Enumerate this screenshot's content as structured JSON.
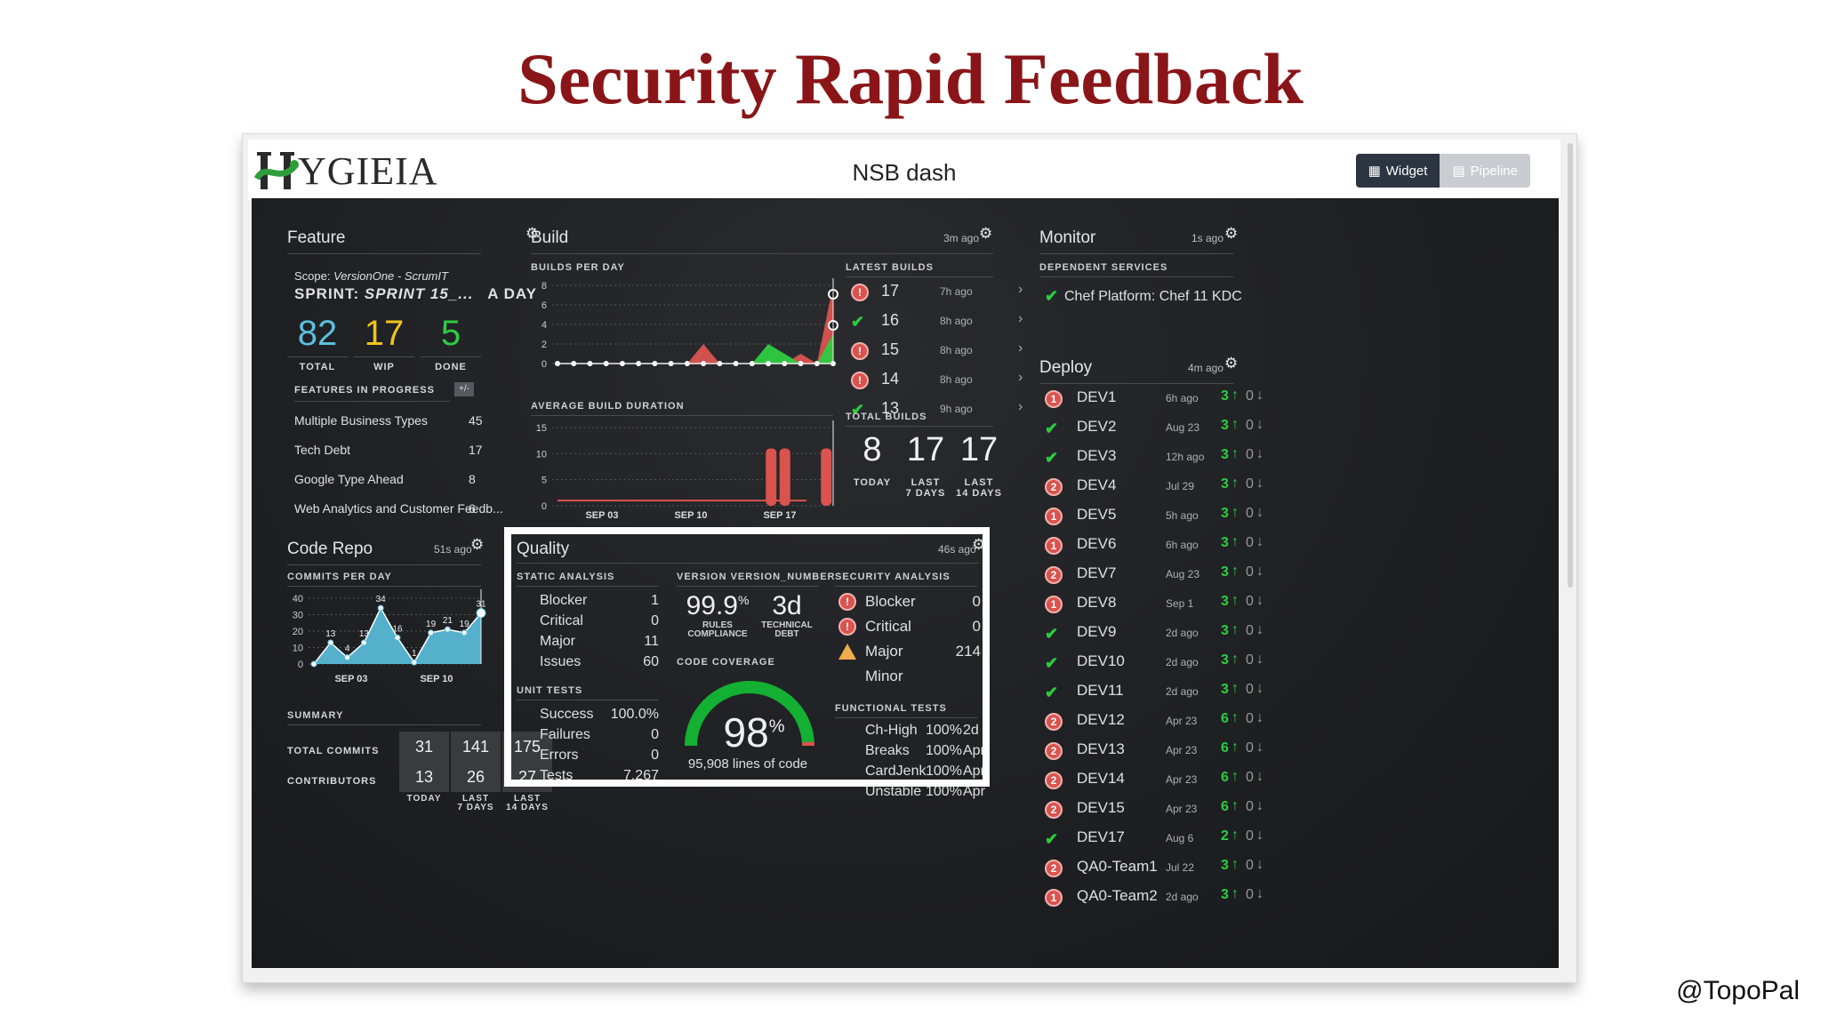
{
  "slide": {
    "title": "Security Rapid Feedback",
    "credit": "@TopoPal"
  },
  "app": {
    "logo": "YGIEIA",
    "dashboard_title": "NSB dash",
    "toggle": {
      "widget": "Widget",
      "pipeline": "Pipeline"
    }
  },
  "feature": {
    "title": "Feature",
    "scope_label": "Scope:",
    "scope_value": "VersionOne - ScrumIT",
    "sprint_label": "SPRINT:",
    "sprint_value": "SPRINT 15_...",
    "sprint_suffix": "A DAY",
    "stats": [
      {
        "value": "82",
        "label": "TOTAL",
        "color": "#5bc0de"
      },
      {
        "value": "17",
        "label": "WIP",
        "color": "#f0c419"
      },
      {
        "value": "5",
        "label": "DONE",
        "color": "#2ecc40"
      }
    ],
    "in_progress_label": "FEATURES IN PROGRESS",
    "toggle_label": "+/-",
    "items": [
      {
        "name": "Multiple Business Types",
        "count": "45"
      },
      {
        "name": "Tech Debt",
        "count": "17"
      },
      {
        "name": "Google Type Ahead",
        "count": "8"
      },
      {
        "name": "Web Analytics and Customer Feedb...",
        "count": "6"
      }
    ]
  },
  "build": {
    "title": "Build",
    "ago": "3m ago",
    "per_day_label": "BUILDS PER DAY",
    "duration_label": "AVERAGE BUILD DURATION",
    "latest_label": "LATEST BUILDS",
    "latest": [
      {
        "status": "fail",
        "number": "17",
        "ago": "7h ago"
      },
      {
        "status": "ok",
        "number": "16",
        "ago": "8h ago"
      },
      {
        "status": "fail",
        "number": "15",
        "ago": "8h ago"
      },
      {
        "status": "fail",
        "number": "14",
        "ago": "8h ago"
      },
      {
        "status": "ok",
        "number": "13",
        "ago": "9h ago"
      }
    ],
    "total_label": "TOTAL BUILDS",
    "totals": [
      {
        "value": "8",
        "label1": "TODAY",
        "label2": ""
      },
      {
        "value": "17",
        "label1": "LAST",
        "label2": "7 DAYS"
      },
      {
        "value": "17",
        "label1": "LAST",
        "label2": "14 DAYS"
      }
    ]
  },
  "monitor": {
    "title": "Monitor",
    "ago": "1s ago",
    "sub": "DEPENDENT SERVICES",
    "services": [
      {
        "name": "Chef Platform: Chef 11 KDC",
        "status": "ok"
      }
    ]
  },
  "deploy": {
    "title": "Deploy",
    "ago": "4m ago",
    "rows": [
      {
        "status": "1",
        "name": "DEV1",
        "ago": "6h ago",
        "up": "3",
        "down": "0"
      },
      {
        "status": "ok",
        "name": "DEV2",
        "ago": "Aug 23",
        "up": "3",
        "down": "0"
      },
      {
        "status": "ok",
        "name": "DEV3",
        "ago": "12h ago",
        "up": "3",
        "down": "0"
      },
      {
        "status": "2",
        "name": "DEV4",
        "ago": "Jul 29",
        "up": "3",
        "down": "0"
      },
      {
        "status": "1",
        "name": "DEV5",
        "ago": "5h ago",
        "up": "3",
        "down": "0"
      },
      {
        "status": "1",
        "name": "DEV6",
        "ago": "6h ago",
        "up": "3",
        "down": "0"
      },
      {
        "status": "2",
        "name": "DEV7",
        "ago": "Aug 23",
        "up": "3",
        "down": "0"
      },
      {
        "status": "1",
        "name": "DEV8",
        "ago": "Sep 1",
        "up": "3",
        "down": "0"
      },
      {
        "status": "ok",
        "name": "DEV9",
        "ago": "2d ago",
        "up": "3",
        "down": "0"
      },
      {
        "status": "ok",
        "name": "DEV10",
        "ago": "2d ago",
        "up": "3",
        "down": "0"
      },
      {
        "status": "ok",
        "name": "DEV11",
        "ago": "2d ago",
        "up": "3",
        "down": "0"
      },
      {
        "status": "2",
        "name": "DEV12",
        "ago": "Apr 23",
        "up": "6",
        "down": "0"
      },
      {
        "status": "2",
        "name": "DEV13",
        "ago": "Apr 23",
        "up": "6",
        "down": "0"
      },
      {
        "status": "2",
        "name": "DEV14",
        "ago": "Apr 23",
        "up": "6",
        "down": "0"
      },
      {
        "status": "2",
        "name": "DEV15",
        "ago": "Apr 23",
        "up": "6",
        "down": "0"
      },
      {
        "status": "ok",
        "name": "DEV17",
        "ago": "Aug 6",
        "up": "2",
        "down": "0"
      },
      {
        "status": "2",
        "name": "QA0-Team1",
        "ago": "Jul 22",
        "up": "3",
        "down": "0"
      },
      {
        "status": "1",
        "name": "QA0-Team2",
        "ago": "2d ago",
        "up": "3",
        "down": "0"
      }
    ]
  },
  "code_repo": {
    "title": "Code Repo",
    "ago": "51s ago",
    "sub": "COMMITS PER DAY",
    "summary_label": "SUMMARY",
    "row_labels": [
      "TOTAL COMMITS",
      "CONTRIBUTORS"
    ],
    "commits": [
      "31",
      "141",
      "175"
    ],
    "contributors": [
      "13",
      "26",
      "27"
    ],
    "col_labels": [
      {
        "l1": "TODAY",
        "l2": ""
      },
      {
        "l1": "LAST",
        "l2": "7 DAYS"
      },
      {
        "l1": "LAST",
        "l2": "14 DAYS"
      }
    ]
  },
  "quality": {
    "title": "Quality",
    "ago": "46s ago",
    "static_label": "STATIC ANALYSIS",
    "static": [
      {
        "name": "Blocker",
        "value": "1"
      },
      {
        "name": "Critical",
        "value": "0"
      },
      {
        "name": "Major",
        "value": "11"
      },
      {
        "name": "Issues",
        "value": "60"
      }
    ],
    "unit_label": "UNIT TESTS",
    "unit": [
      {
        "name": "Success",
        "value": "100.0%"
      },
      {
        "name": "Failures",
        "value": "0"
      },
      {
        "name": "Errors",
        "value": "0"
      },
      {
        "name": "Tests",
        "value": "7,267"
      }
    ],
    "version_label": "VERSION VERSION_NUMBER",
    "rules_value": "99.9",
    "rules_unit": "%",
    "rules_label1": "RULES",
    "rules_label2": "COMPLIANCE",
    "debt_value": "3d",
    "debt_label1": "TECHNICAL",
    "debt_label2": "DEBT",
    "coverage_label": "CODE COVERAGE",
    "coverage_value": "98",
    "coverage_unit": "%",
    "coverage_fraction": 0.98,
    "coverage_lines": "95,908 lines of code",
    "security_label": "SECURITY ANALYSIS",
    "security": [
      {
        "icon": "alert",
        "name": "Blocker",
        "value": "0"
      },
      {
        "icon": "alert",
        "name": "Critical",
        "value": "0"
      },
      {
        "icon": "warn",
        "name": "Major",
        "value": "214"
      },
      {
        "icon": "none",
        "name": "Minor",
        "value": ""
      }
    ],
    "functional_label": "FUNCTIONAL TESTS",
    "functional": [
      {
        "name": "Ch-High",
        "pct": "100%",
        "when": "2d"
      },
      {
        "name": "Breaks",
        "pct": "100%",
        "when": "Apr"
      },
      {
        "name": "CardJenk",
        "pct": "100%",
        "when": "Apr"
      },
      {
        "name": "Unstable",
        "pct": "100%",
        "when": "Apr"
      }
    ]
  },
  "chart_data": [
    {
      "type": "area",
      "title": "BUILDS PER DAY",
      "ylim": [
        0,
        8
      ],
      "yticks": [
        "0",
        "2",
        "4",
        "6",
        "8"
      ],
      "series": [
        {
          "values": [
            0,
            0,
            0,
            0,
            0,
            0,
            0,
            0,
            0,
            2,
            0,
            0,
            0,
            0,
            0,
            1,
            0,
            8
          ]
        },
        {
          "values": [
            0,
            0,
            0,
            0,
            0,
            0,
            0,
            0,
            0,
            0,
            0,
            0,
            0,
            2,
            1,
            0,
            0,
            3
          ]
        }
      ]
    },
    {
      "type": "bar",
      "title": "AVERAGE BUILD DURATION",
      "ylim": [
        0,
        15
      ],
      "yticks": [
        "0",
        "5",
        "10",
        "15"
      ],
      "xticks": [
        "SEP 03",
        "SEP 10",
        "SEP 17"
      ],
      "values": [
        1,
        1,
        1,
        1,
        1,
        1,
        1,
        1,
        1,
        1,
        1,
        1,
        1,
        1,
        1,
        11,
        11,
        0,
        0,
        11
      ],
      "color": "#d9534f"
    },
    {
      "type": "area",
      "title": "COMMITS PER DAY",
      "ylim": [
        0,
        40
      ],
      "yticks": [
        "0",
        "10",
        "20",
        "30",
        "40"
      ],
      "xticks": [
        "SEP 03",
        "SEP 10"
      ],
      "values": [
        0,
        13,
        4,
        13,
        34,
        16,
        1,
        19,
        21,
        19,
        31
      ],
      "labels": [
        "",
        "13",
        "4",
        "13",
        "34",
        "16",
        "1",
        "19",
        "21",
        "19",
        "31"
      ],
      "color": "#5bc0de"
    }
  ]
}
